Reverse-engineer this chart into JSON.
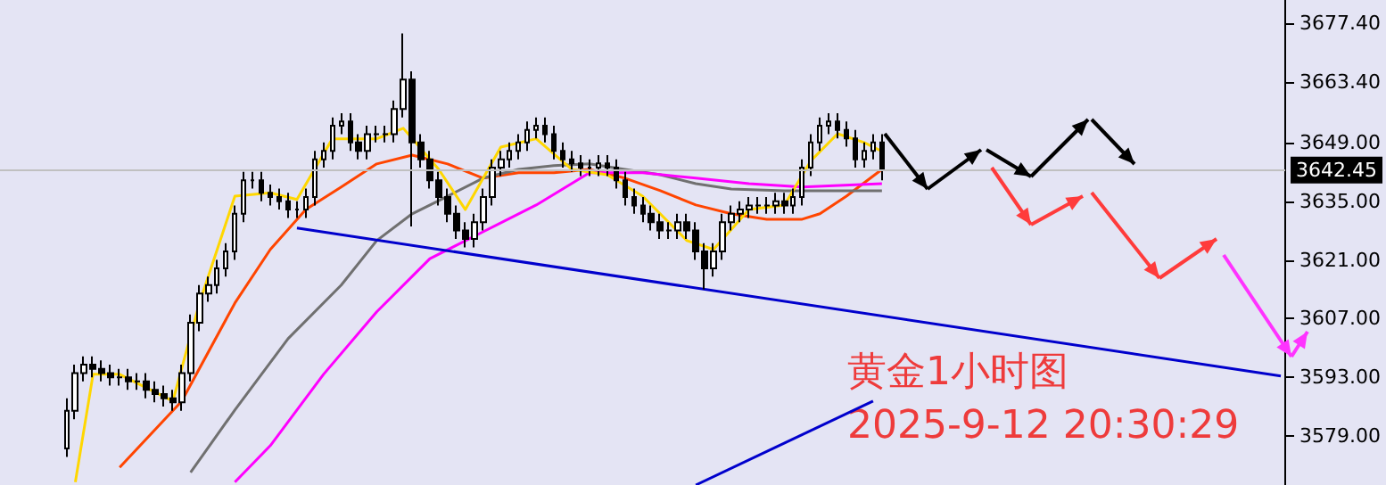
{
  "chart_data": {
    "type": "candlestick",
    "categories": [
      null,
      null,
      null,
      null,
      null,
      null,
      null,
      null,
      null,
      null,
      null,
      null,
      null,
      null,
      null,
      null,
      null,
      null,
      null,
      null,
      null,
      null,
      null,
      null,
      null,
      null,
      null,
      null,
      null,
      null,
      null,
      null,
      null,
      null,
      null,
      null,
      null,
      null,
      null,
      null,
      null,
      null,
      null,
      null,
      null,
      null,
      null,
      null,
      null,
      null,
      null,
      null,
      null,
      null,
      null,
      null,
      null,
      null,
      null,
      null,
      null,
      null,
      null,
      null,
      null,
      null,
      null,
      null,
      null,
      null,
      null,
      null,
      null,
      null,
      null,
      null,
      null,
      null,
      null,
      null,
      null,
      null,
      null,
      null,
      null,
      null,
      null,
      null,
      null,
      null,
      null,
      null,
      null,
      null,
      null,
      null,
      null,
      null,
      null,
      null,
      null,
      null,
      null,
      null,
      null,
      null,
      null,
      null,
      null,
      null,
      null,
      null,
      null,
      null,
      null,
      null,
      null,
      null,
      null,
      null,
      null,
      null,
      null,
      null,
      null,
      null,
      null,
      null,
      null,
      null,
      null,
      null,
      null,
      null,
      null,
      null,
      null,
      null,
      null,
      null,
      null,
      null,
      null,
      null,
      null
    ],
    "ylim": [
      3567.3,
      3683.0
    ],
    "yticks": [
      {
        "value": 3579,
        "label": "3579.00"
      },
      {
        "value": 3593,
        "label": "3593.00"
      },
      {
        "value": 3607,
        "label": "3607.00"
      },
      {
        "value": 3621,
        "label": "3621.00"
      },
      {
        "value": 3635,
        "label": "3635.00"
      },
      {
        "value": 3649,
        "label": "3649.00"
      },
      {
        "value": 3663.4,
        "label": "3663.40"
      },
      {
        "value": 3677.4,
        "label": "3677.40"
      }
    ],
    "tick_labels": "y",
    "grid": false,
    "annotations": [
      "黄金1小时图",
      "2025-9-12 20:30:29"
    ],
    "ref_lines": [
      {
        "axis": "y",
        "value": 3642.45,
        "label": "3642.45",
        "color": "#c0c0c0"
      }
    ],
    "series": [
      {
        "ohlc": [
          null,
          null,
          null,
          null,
          null,
          null,
          null,
          [
            3576,
            3588,
            3574,
            3585
          ],
          [
            3585,
            3596,
            3583,
            3594
          ],
          [
            3594,
            3598,
            3592,
            3596
          ],
          [
            3596,
            3598,
            3593,
            3595
          ],
          [
            3595,
            3597,
            3592,
            3594
          ],
          [
            3594,
            3596,
            3591,
            3593
          ],
          [
            3593,
            3595,
            3591,
            3593
          ],
          [
            3593,
            3595,
            3590,
            3592
          ],
          [
            3592,
            3594,
            3590,
            3592
          ],
          [
            3592,
            3594,
            3588,
            3590
          ],
          [
            3590,
            3592,
            3587,
            3589
          ],
          [
            3589,
            3591,
            3586,
            3588
          ],
          [
            3588,
            3590,
            3585,
            3587
          ],
          [
            3587,
            3596,
            3585,
            3594
          ],
          [
            3594,
            3608,
            3592,
            3606
          ],
          [
            3606,
            3615,
            3604,
            3613
          ],
          [
            3613,
            3617,
            3611,
            3615
          ],
          [
            3615,
            3621,
            3613,
            3619
          ],
          [
            3619,
            3625,
            3617,
            3623
          ],
          [
            3623,
            3634,
            3621,
            3632
          ],
          [
            3632,
            3642,
            3630,
            3640
          ],
          [
            3640,
            3642,
            3638,
            3640
          ],
          [
            3640,
            3642,
            3635,
            3637
          ],
          [
            3637,
            3639,
            3634,
            3636
          ],
          [
            3636,
            3638,
            3633,
            3635
          ],
          [
            3635,
            3637,
            3631,
            3633
          ],
          [
            3633,
            3635,
            3631,
            3633
          ],
          [
            3633,
            3638,
            3631,
            3636
          ],
          [
            3636,
            3647,
            3634,
            3645
          ],
          [
            3645,
            3649,
            3643,
            3647
          ],
          [
            3647,
            3655,
            3645,
            3653
          ],
          [
            3653,
            3656,
            3651,
            3654
          ],
          [
            3654,
            3656,
            3647,
            3649
          ],
          [
            3649,
            3651,
            3645,
            3647
          ],
          [
            3647,
            3653,
            3645,
            3651
          ],
          [
            3651,
            3653,
            3649,
            3651
          ],
          [
            3651,
            3653,
            3649,
            3651
          ],
          [
            3651,
            3659,
            3649,
            3657
          ],
          [
            3657,
            3675,
            3655,
            3664
          ],
          [
            3664,
            3666,
            3629,
            3649
          ],
          [
            3649,
            3651,
            3643,
            3645
          ],
          [
            3645,
            3647,
            3638,
            3640
          ],
          [
            3640,
            3642,
            3634,
            3636
          ],
          [
            3636,
            3638,
            3630,
            3632
          ],
          [
            3632,
            3634,
            3626,
            3628
          ],
          [
            3628,
            3630,
            3624,
            3626
          ],
          [
            3626,
            3632,
            3624,
            3630
          ],
          [
            3630,
            3638,
            3628,
            3636
          ],
          [
            3636,
            3645,
            3634,
            3643
          ],
          [
            3643,
            3647,
            3641,
            3645
          ],
          [
            3645,
            3649,
            3643,
            3647
          ],
          [
            3647,
            3651,
            3645,
            3649
          ],
          [
            3649,
            3654,
            3647,
            3652
          ],
          [
            3652,
            3655,
            3650,
            3653
          ],
          [
            3653,
            3655,
            3649,
            3651
          ],
          [
            3651,
            3653,
            3645,
            3647
          ],
          [
            3647,
            3649,
            3643,
            3645
          ],
          [
            3645,
            3647,
            3642,
            3644
          ],
          [
            3644,
            3646,
            3641,
            3643
          ],
          [
            3643,
            3645,
            3641,
            3643
          ],
          [
            3643,
            3646,
            3641,
            3644
          ],
          [
            3644,
            3646,
            3641,
            3643
          ],
          [
            3643,
            3645,
            3638,
            3640
          ],
          [
            3640,
            3642,
            3634,
            3636
          ],
          [
            3636,
            3638,
            3632,
            3634
          ],
          [
            3634,
            3636,
            3630,
            3632
          ],
          [
            3632,
            3634,
            3628,
            3630
          ],
          [
            3630,
            3632,
            3626,
            3628
          ],
          [
            3628,
            3630,
            3626,
            3628
          ],
          [
            3628,
            3632,
            3626,
            3630
          ],
          [
            3630,
            3632,
            3626,
            3628
          ],
          [
            3628,
            3630,
            3621,
            3623
          ],
          [
            3623,
            3625,
            3614,
            3619
          ],
          [
            3619,
            3625,
            3617,
            3623
          ],
          [
            3623,
            3632,
            3621,
            3630
          ],
          [
            3630,
            3634,
            3628,
            3632
          ],
          [
            3632,
            3635,
            3630,
            3633
          ],
          [
            3633,
            3636,
            3631,
            3634
          ],
          [
            3634,
            3636,
            3632,
            3634
          ],
          [
            3634,
            3636,
            3632,
            3634
          ],
          [
            3634,
            3637,
            3632,
            3635
          ],
          [
            3635,
            3637,
            3632,
            3634
          ],
          [
            3634,
            3638,
            3632,
            3636
          ],
          [
            3636,
            3645,
            3634,
            3643
          ],
          [
            3643,
            3651,
            3641,
            3649
          ],
          [
            3649,
            3655,
            3647,
            3653
          ],
          [
            3653,
            3656,
            3651,
            3654
          ],
          [
            3654,
            3656,
            3650,
            3652
          ],
          [
            3652,
            3654,
            3648,
            3650
          ],
          [
            3650,
            3652,
            3643,
            3645
          ],
          [
            3645,
            3649,
            3643,
            3647
          ],
          [
            3647,
            3651,
            3645,
            3649
          ],
          [
            3649,
            3651,
            3640,
            3642.45
          ],
          null,
          null,
          null,
          null,
          null,
          null,
          null,
          null,
          null,
          null,
          null,
          null,
          null,
          null,
          null,
          null,
          null,
          null,
          null,
          null,
          null,
          null,
          null,
          null,
          null,
          null,
          null,
          null,
          null,
          null,
          null,
          null,
          null,
          null,
          null,
          null,
          null,
          null,
          null,
          null,
          null,
          null,
          null,
          null,
          null
        ]
      },
      {
        "type": "line",
        "color": "#ff4500",
        "values": [
          null,
          null,
          null,
          null,
          null,
          null,
          null,
          null,
          null,
          null,
          null,
          null,
          null,
          3571.5,
          null,
          null,
          null,
          null,
          null,
          null,
          3587.3,
          null,
          null,
          null,
          null,
          null,
          3610.7,
          null,
          null,
          null,
          3623.5,
          null,
          null,
          null,
          3633,
          null,
          null,
          null,
          3638.4,
          null,
          null,
          null,
          3643.9,
          null,
          null,
          null,
          3646,
          null,
          null,
          null,
          3643.9,
          null,
          null,
          null,
          3640.5,
          null,
          null,
          null,
          3641.8,
          null,
          null,
          null,
          3641.8,
          null,
          null,
          null,
          3642.6,
          null,
          null,
          null,
          3640.5,
          null,
          null,
          null,
          3637.5,
          null,
          null,
          null,
          3634.1,
          null,
          null,
          null,
          3632,
          null,
          null,
          null,
          3630.7,
          null,
          null,
          null,
          3630.7,
          null,
          3632,
          null,
          null,
          3636.2,
          null,
          null,
          null,
          3642.6,
          null,
          null,
          null,
          null,
          null,
          null,
          null,
          null,
          null,
          null,
          null,
          null,
          null,
          null,
          null,
          null,
          null,
          null,
          null,
          null,
          null,
          null,
          null,
          null,
          null,
          null,
          null,
          null,
          null,
          null,
          null,
          null,
          null,
          null,
          null,
          null,
          null,
          null,
          null,
          null,
          null,
          null,
          null,
          null,
          null
        ]
      },
      {
        "type": "line",
        "color": "#707070",
        "values": [
          null,
          null,
          null,
          null,
          null,
          null,
          null,
          null,
          null,
          null,
          null,
          null,
          null,
          null,
          null,
          null,
          null,
          null,
          null,
          null,
          null,
          3570.3,
          null,
          null,
          null,
          null,
          3585.2,
          null,
          null,
          null,
          null,
          null,
          3602.2,
          null,
          null,
          null,
          null,
          null,
          3615,
          null,
          null,
          null,
          3625.6,
          null,
          null,
          null,
          3632,
          null,
          null,
          null,
          3636.2,
          null,
          null,
          null,
          3640.5,
          null,
          null,
          null,
          3642.6,
          null,
          null,
          null,
          3643.5,
          null,
          null,
          null,
          3643.9,
          null,
          null,
          null,
          3642.6,
          null,
          null,
          null,
          3641.3,
          null,
          null,
          null,
          3639.2,
          null,
          null,
          null,
          3637.9,
          null,
          null,
          null,
          null,
          null,
          3637.5,
          null,
          null,
          null,
          null,
          null,
          3637.5,
          null,
          null,
          null,
          null,
          3637.5,
          null,
          null,
          null,
          null,
          null,
          null,
          null,
          null,
          null,
          null,
          null,
          null,
          null,
          null,
          null,
          null,
          null,
          null,
          null,
          null,
          null,
          null,
          null,
          null,
          null,
          null,
          null,
          null,
          null,
          null,
          null,
          null,
          null,
          null,
          null,
          null,
          null,
          null,
          null,
          null,
          null,
          null,
          null,
          null,
          null
        ]
      },
      {
        "type": "line",
        "color": "#ff00ff",
        "values": [
          null,
          null,
          null,
          null,
          null,
          null,
          null,
          null,
          null,
          null,
          null,
          null,
          null,
          null,
          null,
          null,
          null,
          null,
          null,
          null,
          null,
          null,
          null,
          null,
          null,
          null,
          3568,
          null,
          null,
          null,
          3576.7,
          null,
          null,
          null,
          null,
          null,
          3593.7,
          null,
          null,
          null,
          null,
          null,
          3608.6,
          null,
          null,
          null,
          null,
          null,
          3621.3,
          null,
          null,
          null,
          null,
          null,
          3627.7,
          null,
          null,
          null,
          null,
          null,
          3634.1,
          null,
          null,
          null,
          null,
          null,
          3641.8,
          null,
          null,
          null,
          null,
          null,
          3641.8,
          null,
          null,
          null,
          null,
          null,
          3640.5,
          null,
          null,
          null,
          null,
          null,
          3639.2,
          null,
          null,
          null,
          null,
          null,
          3638.4,
          null,
          null,
          null,
          null,
          null,
          null,
          null,
          null,
          3639.2,
          null,
          null,
          null,
          null,
          null,
          null,
          null,
          null,
          null,
          null,
          null,
          null,
          null,
          null,
          null,
          null,
          null,
          null,
          null,
          null,
          null,
          null,
          null,
          null,
          null,
          null,
          null,
          null,
          null,
          null,
          null,
          null,
          null,
          null,
          null,
          null,
          null,
          null,
          null,
          null,
          null,
          null,
          null,
          null,
          null
        ]
      },
      {
        "type": "line",
        "color": "#ffd700",
        "values": [
          null,
          null,
          null,
          null,
          null,
          null,
          null,
          null,
          3568,
          null,
          3593.7,
          null,
          null,
          3593.7,
          null,
          null,
          null,
          null,
          null,
          3587.3,
          null,
          null,
          3610.7,
          null,
          null,
          null,
          3636.2,
          null,
          null,
          null,
          3637,
          null,
          null,
          3635.4,
          null,
          null,
          null,
          3649.9,
          null,
          null,
          null,
          null,
          3649.9,
          null,
          null,
          3652.4,
          null,
          null,
          null,
          3642.6,
          null,
          null,
          3633,
          null,
          null,
          null,
          3647.9,
          null,
          null,
          null,
          3649.9,
          null,
          null,
          null,
          3642.6,
          null,
          null,
          null,
          3641.3,
          null,
          null,
          null,
          3636.2,
          null,
          null,
          null,
          null,
          3625.6,
          null,
          null,
          3623.5,
          null,
          null,
          null,
          3633,
          null,
          null,
          null,
          3634.1,
          null,
          null,
          3644.7,
          null,
          null,
          3651.1,
          null,
          null,
          3649,
          null,
          3646.9,
          null,
          null,
          null,
          null,
          null,
          null,
          null,
          null,
          null,
          null,
          null,
          null,
          null,
          null,
          null,
          null,
          null,
          null,
          null,
          null,
          null,
          null,
          null,
          null,
          null,
          null,
          null,
          null,
          null,
          null,
          null,
          null,
          null,
          null,
          null,
          null,
          null,
          null,
          null,
          null,
          null,
          null,
          null,
          null,
          null
        ]
      },
      {
        "type": "line",
        "color": "#0000cc",
        "values": [
          null,
          null,
          null,
          null,
          null,
          null,
          null,
          null,
          null,
          null,
          null,
          null,
          null,
          null,
          null,
          null,
          null,
          null,
          null,
          null,
          null,
          null,
          null,
          null,
          null,
          null,
          null,
          null,
          null,
          null,
          null,
          null,
          null,
          3628.6,
          null,
          null,
          null,
          null,
          null,
          null,
          null,
          null,
          null,
          null,
          null,
          null,
          null,
          null,
          null,
          null,
          null,
          null,
          null,
          null,
          null,
          null,
          null,
          null,
          null,
          null,
          null,
          null,
          null,
          null,
          null,
          null,
          null,
          null,
          null,
          null,
          null,
          null,
          null,
          null,
          null,
          null,
          null,
          null,
          null,
          null,
          null,
          null,
          null,
          null,
          null,
          null,
          null,
          null,
          null,
          null,
          null,
          null,
          null,
          null,
          null,
          null,
          null,
          null,
          null,
          null,
          null,
          null,
          null,
          null,
          null,
          null,
          null,
          null,
          null,
          null,
          null,
          null,
          null,
          null,
          null,
          null,
          null,
          null,
          null,
          null,
          null,
          null,
          null,
          null,
          null,
          null,
          null,
          null,
          null,
          null,
          null,
          null,
          null,
          null,
          null,
          null,
          null,
          null,
          null,
          null,
          null,
          null,
          null,
          null,
          3593.3
        ]
      },
      {
        "type": "line",
        "color": "#0000cc",
        "values": [
          null,
          null,
          null,
          null,
          null,
          null,
          null,
          null,
          null,
          null,
          null,
          null,
          null,
          null,
          null,
          null,
          null,
          null,
          null,
          null,
          null,
          null,
          null,
          null,
          null,
          null,
          null,
          null,
          null,
          null,
          null,
          null,
          null,
          null,
          null,
          null,
          null,
          null,
          null,
          null,
          null,
          null,
          null,
          null,
          null,
          null,
          null,
          null,
          null,
          null,
          null,
          null,
          null,
          null,
          null,
          null,
          null,
          null,
          null,
          null,
          null,
          null,
          null,
          null,
          null,
          null,
          null,
          null,
          null,
          null,
          null,
          null,
          null,
          null,
          null,
          null,
          null,
          null,
          3567.3,
          null,
          null,
          null,
          null,
          null,
          null,
          null,
          null,
          null,
          null,
          null,
          null,
          null,
          null,
          null,
          null,
          null,
          null,
          null,
          3587.3,
          null,
          null,
          null,
          null,
          null,
          null,
          null,
          null,
          null,
          null,
          null,
          null,
          null,
          null,
          null,
          null,
          null,
          null,
          null,
          null,
          null,
          null,
          null,
          null,
          null,
          null,
          null,
          null,
          null,
          null,
          null,
          null,
          null,
          null,
          null,
          null,
          null,
          null,
          null,
          null,
          null,
          null,
          null,
          null,
          null,
          null
        ]
      }
    ]
  }
}
